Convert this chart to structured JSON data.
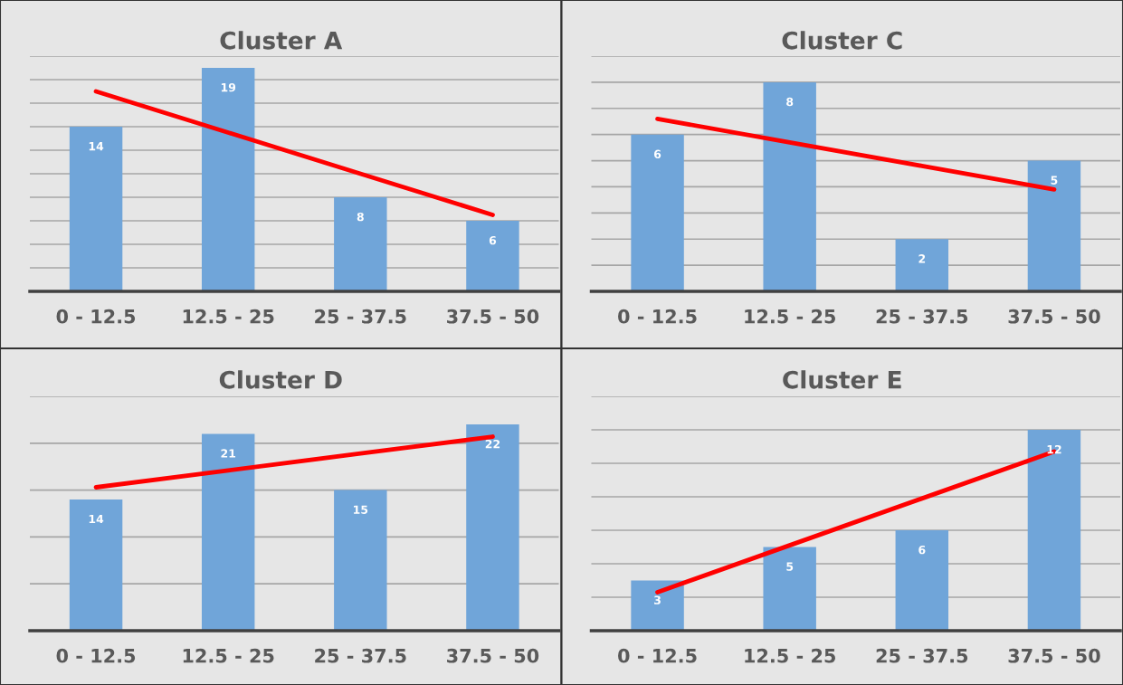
{
  "chart_data": [
    {
      "type": "bar",
      "title": "Cluster A",
      "categories": [
        "0 - 12.5",
        "12.5 - 25",
        "25 - 37.5",
        "37.5 - 50"
      ],
      "ylim": [
        0,
        20
      ],
      "yticks": [
        {
          "value": 0,
          "label": null
        },
        {
          "value": 2,
          "label": null
        },
        {
          "value": 4,
          "label": null
        },
        {
          "value": 6,
          "label": null
        },
        {
          "value": 8,
          "label": null
        },
        {
          "value": 10,
          "label": null
        },
        {
          "value": 12,
          "label": null
        },
        {
          "value": 14,
          "label": null
        },
        {
          "value": 16,
          "label": null
        },
        {
          "value": 18,
          "label": null
        },
        {
          "value": 20,
          "label": null
        }
      ],
      "tick_labels": "x",
      "grid": "y",
      "series": [
        {
          "color": "#70a5d9",
          "values": [
            14,
            19,
            8,
            6
          ],
          "value_labels": [
            "14",
            "19",
            "8",
            "6"
          ]
        },
        {
          "type": "line",
          "color": "#ff0000",
          "values": [
            17,
            13.5,
            10,
            6.5
          ]
        }
      ]
    },
    {
      "type": "bar",
      "title": "Cluster C",
      "categories": [
        "0 - 12.5",
        "12.5 - 25",
        "25 - 37.5",
        "37.5 - 50"
      ],
      "ylim": [
        0,
        9
      ],
      "yticks": [
        {
          "value": 0,
          "label": null
        },
        {
          "value": 1,
          "label": null
        },
        {
          "value": 2,
          "label": null
        },
        {
          "value": 3,
          "label": null
        },
        {
          "value": 4,
          "label": null
        },
        {
          "value": 5,
          "label": null
        },
        {
          "value": 6,
          "label": null
        },
        {
          "value": 7,
          "label": null
        },
        {
          "value": 8,
          "label": null
        },
        {
          "value": 9,
          "label": null
        }
      ],
      "tick_labels": "x",
      "grid": "y",
      "series": [
        {
          "color": "#70a5d9",
          "values": [
            6,
            8,
            2,
            5
          ],
          "value_labels": [
            "6",
            "8",
            "2",
            "5"
          ]
        },
        {
          "type": "line",
          "color": "#ff0000",
          "values": [
            6.6,
            5.7,
            4.8,
            3.9
          ]
        }
      ]
    },
    {
      "type": "bar",
      "title": "Cluster D",
      "categories": [
        "0 - 12.5",
        "12.5 - 25",
        "25 - 37.5",
        "37.5 - 50"
      ],
      "ylim": [
        0,
        25
      ],
      "yticks": [
        {
          "value": 0,
          "label": null
        },
        {
          "value": 5,
          "label": null
        },
        {
          "value": 10,
          "label": null
        },
        {
          "value": 15,
          "label": null
        },
        {
          "value": 20,
          "label": null
        },
        {
          "value": 25,
          "label": null
        }
      ],
      "tick_labels": "x",
      "grid": "y",
      "series": [
        {
          "color": "#70a5d9",
          "values": [
            14,
            21,
            15,
            22
          ],
          "value_labels": [
            "14",
            "21",
            "15",
            "22"
          ]
        },
        {
          "type": "line",
          "color": "#ff0000",
          "values": [
            15.3,
            17.1,
            18.9,
            20.7
          ]
        }
      ]
    },
    {
      "type": "bar",
      "title": "Cluster E",
      "categories": [
        "0 - 12.5",
        "12.5 - 25",
        "25 - 37.5",
        "37.5 - 50"
      ],
      "ylim": [
        0,
        14
      ],
      "yticks": [
        {
          "value": 0,
          "label": null
        },
        {
          "value": 2,
          "label": null
        },
        {
          "value": 4,
          "label": null
        },
        {
          "value": 6,
          "label": null
        },
        {
          "value": 8,
          "label": null
        },
        {
          "value": 10,
          "label": null
        },
        {
          "value": 12,
          "label": null
        },
        {
          "value": 14,
          "label": null
        }
      ],
      "tick_labels": "x",
      "grid": "y",
      "series": [
        {
          "color": "#70a5d9",
          "values": [
            3,
            5,
            6,
            12
          ],
          "value_labels": [
            "3",
            "5",
            "6",
            "12"
          ]
        },
        {
          "type": "line",
          "color": "#ff0000",
          "values": [
            2.3,
            5.1,
            7.9,
            10.7
          ]
        }
      ]
    }
  ]
}
